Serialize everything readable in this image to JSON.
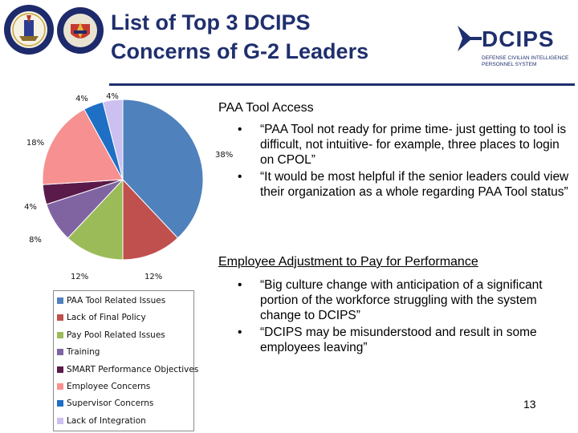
{
  "header": {
    "title_line1": "List of Top 3 DCIPS",
    "title_line2": "Concerns of G-2 Leaders",
    "logo_text": "DCIPS",
    "logo_subtext_line1": "DEFENSE CIVILIAN INTELLIGENCE",
    "logo_subtext_line2": "PERSONNEL SYSTEM",
    "colors": {
      "title": "#1f2f6e",
      "rule": "#1f2f6e",
      "logo": "#1f2f6e"
    }
  },
  "chart_data": {
    "type": "pie",
    "title": "",
    "start_angle_deg": 0,
    "direction": "clockwise",
    "slices": [
      {
        "label": "PAA Tool Related Issues",
        "value": 38,
        "display": "38%",
        "color": "#4f81bd"
      },
      {
        "label": "Lack of Final Policy",
        "value": 12,
        "display": "12%",
        "color": "#c0504d"
      },
      {
        "label": "Pay Pool Related Issues",
        "value": 12,
        "display": "12%",
        "color": "#9bbb59"
      },
      {
        "label": "Training",
        "value": 8,
        "display": "8%",
        "color": "#8064a2"
      },
      {
        "label": "SMART Performance Objectives",
        "value": 4,
        "display": "4%",
        "color": "#5a1a4a"
      },
      {
        "label": "Employee Concerns",
        "value": 18,
        "display": "18%",
        "color": "#f79090"
      },
      {
        "label": "Supervisor Concerns",
        "value": 4,
        "display": "4%",
        "color": "#1f6fc5"
      },
      {
        "label": "Lack of Integration",
        "value": 4,
        "display": "4%",
        "color": "#ccc0f0"
      }
    ],
    "legend_position": "bottom"
  },
  "sections": [
    {
      "title": "PAA Tool Access",
      "bullets": [
        {
          "marker": "•",
          "text": "“PAA Tool not ready for prime time- just getting to tool is difficult, not intuitive- for example, three places to login on CPOL”"
        },
        {
          "marker": "•",
          "text": "“It would be most helpful if the senior leaders could view their organization as a whole regarding PAA Tool status”"
        }
      ]
    },
    {
      "title": "Employee Adjustment to Pay for Performance",
      "bullets": [
        {
          "marker": "•",
          "text": "“Big culture change with anticipation of a significant portion of the workforce struggling with the system change to DCIPS”"
        },
        {
          "marker": "•",
          "text": "“DCIPS may be misunderstood and result in some employees leaving”"
        }
      ]
    }
  ],
  "footer": {
    "page_number": "13"
  }
}
